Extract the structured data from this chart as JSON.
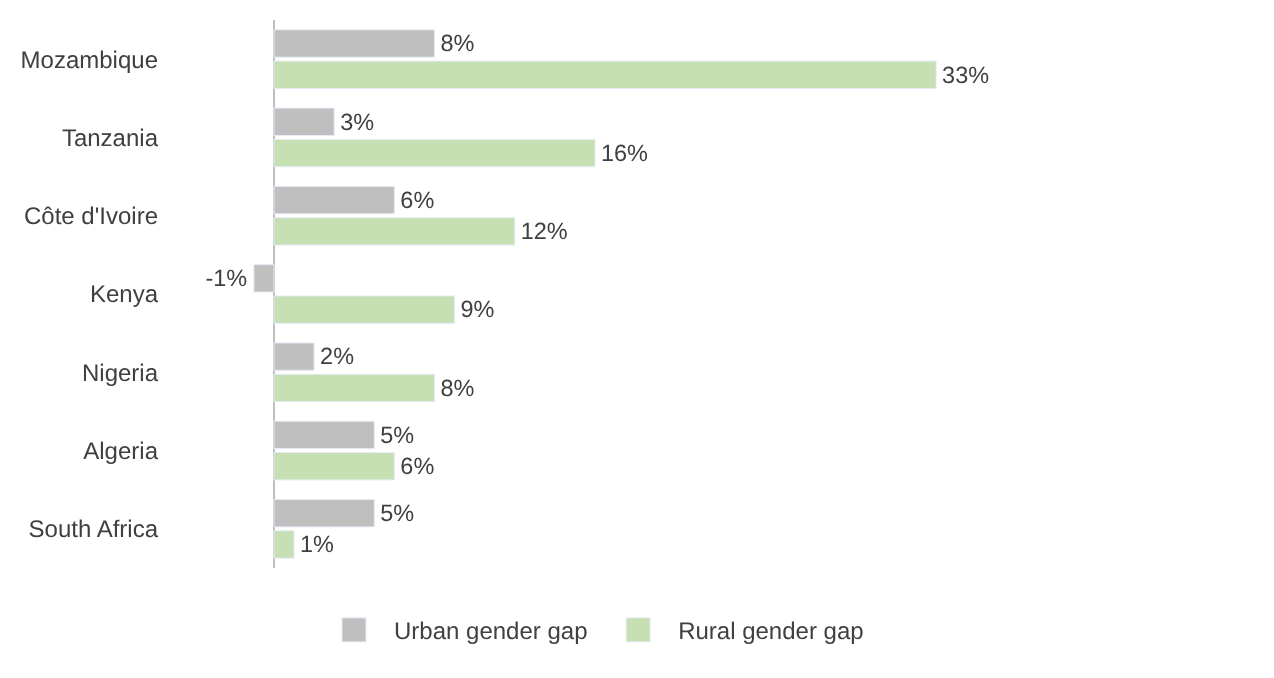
{
  "chart_data": {
    "type": "bar",
    "orientation": "horizontal",
    "categories": [
      "Mozambique",
      "Tanzania",
      "Côte d'Ivoire",
      "Kenya",
      "Nigeria",
      "Algeria",
      "South Africa"
    ],
    "series": [
      {
        "name": "Urban gender gap",
        "color": "#bfbfbf",
        "values": [
          8,
          3,
          6,
          -1,
          2,
          5,
          5
        ],
        "value_labels": [
          "8%",
          "3%",
          "6%",
          "-1%",
          "2%",
          "5%",
          "5%"
        ]
      },
      {
        "name": "Rural gender gap",
        "color": "#c6e0b4",
        "values": [
          33,
          16,
          12,
          9,
          8,
          6,
          1
        ],
        "value_labels": [
          "33%",
          "16%",
          "12%",
          "9%",
          "8%",
          "6%",
          "1%"
        ]
      }
    ],
    "tick_labels": "y",
    "legend": "bottom"
  }
}
